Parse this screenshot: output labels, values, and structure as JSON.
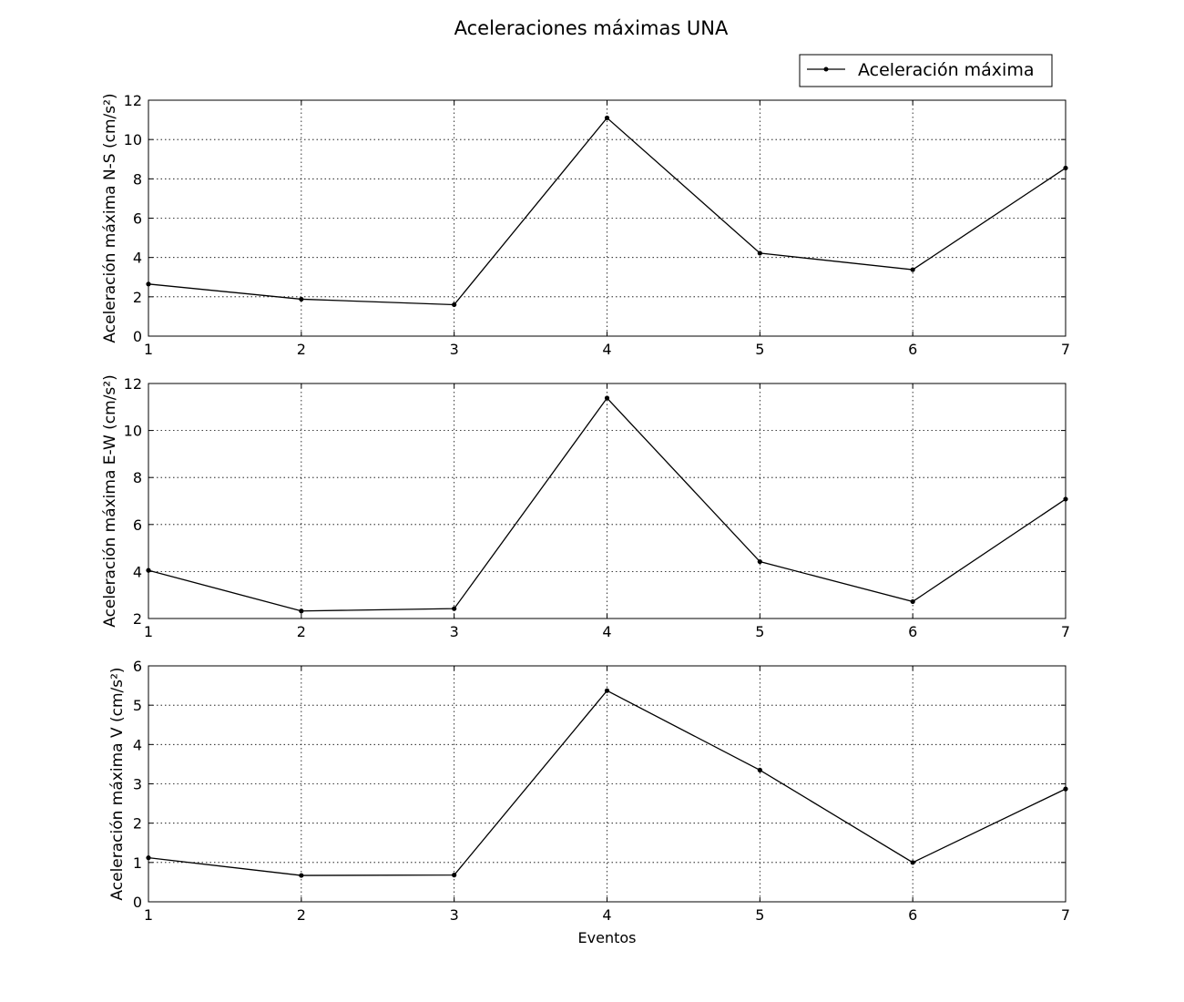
{
  "figure_title": "Aceleraciones máximas UNA",
  "legend": {
    "label": "Aceleración máxima",
    "placement": "upper-right"
  },
  "chart_data": [
    {
      "type": "line",
      "ylabel": "Aceleración máxima N-S (cm/s²)",
      "xlabel": "",
      "x": [
        1,
        2,
        3,
        4,
        5,
        6,
        7
      ],
      "xlim": [
        1,
        7
      ],
      "ylim": [
        0,
        12
      ],
      "yticks": [
        0,
        2,
        4,
        6,
        8,
        10,
        12
      ],
      "grid": true,
      "series": [
        {
          "name": "Aceleración máxima",
          "values": [
            2.65,
            1.88,
            1.6,
            11.1,
            4.22,
            3.38,
            8.55
          ]
        }
      ]
    },
    {
      "type": "line",
      "ylabel": "Aceleración máxima E-W (cm/s²)",
      "xlabel": "",
      "x": [
        1,
        2,
        3,
        4,
        5,
        6,
        7
      ],
      "xlim": [
        1,
        7
      ],
      "ylim": [
        2,
        12
      ],
      "yticks": [
        2,
        4,
        6,
        8,
        10,
        12
      ],
      "grid": true,
      "series": [
        {
          "name": "Aceleración máxima",
          "values": [
            4.05,
            2.32,
            2.42,
            11.38,
            4.42,
            2.72,
            7.08
          ]
        }
      ]
    },
    {
      "type": "line",
      "ylabel": "Aceleración máxima V (cm/s²)",
      "xlabel": "Eventos",
      "x": [
        1,
        2,
        3,
        4,
        5,
        6,
        7
      ],
      "xlim": [
        1,
        7
      ],
      "ylim": [
        0,
        6
      ],
      "yticks": [
        0,
        1,
        2,
        3,
        4,
        5,
        6
      ],
      "grid": true,
      "series": [
        {
          "name": "Aceleración máxima",
          "values": [
            1.12,
            0.67,
            0.68,
            5.37,
            3.35,
            1.0,
            2.87
          ]
        }
      ]
    }
  ],
  "colors": {
    "line": "#000000",
    "grid": "#000000",
    "background": "#ffffff"
  }
}
